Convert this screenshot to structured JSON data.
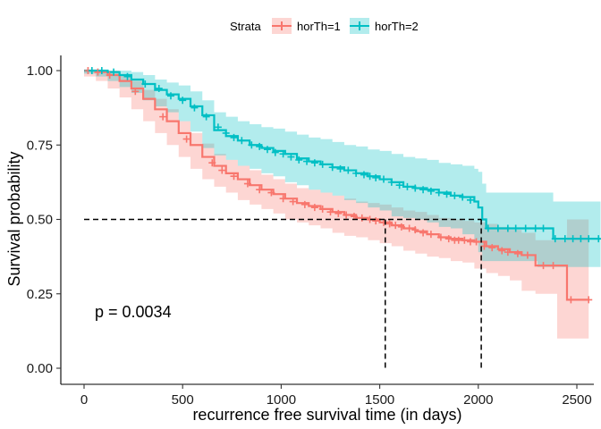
{
  "chart_data": {
    "type": "line",
    "xlabel": "recurrence free survival time (in days)",
    "ylabel": "Survival probability",
    "xlim": [
      -120,
      2620
    ],
    "ylim": [
      -0.05,
      1.05
    ],
    "x_ticks": [
      0,
      500,
      1000,
      1500,
      2000,
      2500
    ],
    "x_tick_labels": [
      "0",
      "500",
      "1000",
      "1500",
      "2000",
      "2500"
    ],
    "y_ticks": [
      0,
      0.25,
      0.5,
      0.75,
      1.0
    ],
    "y_tick_labels": [
      "0.00",
      "0.25",
      "0.50",
      "0.75",
      "1.00"
    ],
    "legend": {
      "title": "Strata",
      "position": "top"
    },
    "pvalue_label": "p = 0.0034",
    "median_line_y": 0.5,
    "series": [
      {
        "name": "horTh=1",
        "color": "#F8766D",
        "median": 1528,
        "x": [
          0,
          60,
          120,
          180,
          240,
          300,
          360,
          420,
          480,
          540,
          600,
          660,
          720,
          780,
          840,
          900,
          960,
          1020,
          1080,
          1140,
          1200,
          1260,
          1320,
          1380,
          1440,
          1500,
          1560,
          1620,
          1680,
          1740,
          1800,
          1860,
          1920,
          1980,
          2040,
          2100,
          2160,
          2220,
          2290,
          2400,
          2450,
          2560
        ],
        "y": [
          1.0,
          0.995,
          0.985,
          0.965,
          0.94,
          0.905,
          0.87,
          0.83,
          0.79,
          0.75,
          0.71,
          0.68,
          0.655,
          0.635,
          0.615,
          0.6,
          0.585,
          0.57,
          0.555,
          0.545,
          0.535,
          0.525,
          0.515,
          0.505,
          0.5,
          0.49,
          0.48,
          0.47,
          0.46,
          0.45,
          0.44,
          0.435,
          0.43,
          0.425,
          0.41,
          0.4,
          0.39,
          0.38,
          0.345,
          0.345,
          0.23,
          0.23
        ],
        "lower": [
          1.0,
          0.98,
          0.965,
          0.94,
          0.91,
          0.87,
          0.83,
          0.79,
          0.75,
          0.71,
          0.67,
          0.635,
          0.61,
          0.59,
          0.565,
          0.55,
          0.535,
          0.52,
          0.5,
          0.49,
          0.48,
          0.47,
          0.455,
          0.445,
          0.44,
          0.43,
          0.42,
          0.41,
          0.395,
          0.385,
          0.375,
          0.37,
          0.36,
          0.355,
          0.335,
          0.32,
          0.31,
          0.295,
          0.26,
          0.25,
          0.1,
          0.1
        ],
        "upper": [
          1.0,
          1.0,
          1.0,
          0.985,
          0.965,
          0.935,
          0.905,
          0.87,
          0.83,
          0.79,
          0.755,
          0.72,
          0.7,
          0.68,
          0.665,
          0.65,
          0.635,
          0.62,
          0.605,
          0.6,
          0.59,
          0.58,
          0.57,
          0.56,
          0.555,
          0.55,
          0.54,
          0.53,
          0.525,
          0.515,
          0.505,
          0.5,
          0.495,
          0.49,
          0.485,
          0.475,
          0.465,
          0.455,
          0.43,
          0.43,
          0.5,
          0.5
        ],
        "censor_x": [
          20,
          70,
          130,
          260,
          400,
          520,
          650,
          700,
          760,
          830,
          890,
          950,
          1010,
          1060,
          1120,
          1170,
          1210,
          1250,
          1290,
          1330,
          1370,
          1410,
          1450,
          1480,
          1520,
          1550,
          1580,
          1610,
          1650,
          1680,
          1720,
          1760,
          1810,
          1850,
          1880,
          1900,
          1930,
          1960,
          1990,
          2030,
          2070,
          2120,
          2150,
          2200,
          2250,
          2330,
          2380,
          2470,
          2560
        ],
        "censor_y": [
          1.0,
          0.995,
          0.985,
          0.93,
          0.845,
          0.77,
          0.69,
          0.665,
          0.645,
          0.62,
          0.6,
          0.59,
          0.57,
          0.56,
          0.55,
          0.54,
          0.535,
          0.525,
          0.52,
          0.515,
          0.51,
          0.505,
          0.5,
          0.495,
          0.49,
          0.485,
          0.48,
          0.475,
          0.47,
          0.465,
          0.455,
          0.45,
          0.44,
          0.435,
          0.43,
          0.43,
          0.43,
          0.425,
          0.425,
          0.41,
          0.405,
          0.395,
          0.39,
          0.385,
          0.38,
          0.345,
          0.345,
          0.23,
          0.23
        ]
      },
      {
        "name": "horTh=2",
        "color": "#00BFC4",
        "median": 2015,
        "x": [
          0,
          60,
          120,
          180,
          240,
          300,
          360,
          420,
          480,
          540,
          600,
          660,
          720,
          780,
          840,
          900,
          960,
          1020,
          1080,
          1140,
          1200,
          1260,
          1320,
          1380,
          1440,
          1500,
          1560,
          1620,
          1680,
          1740,
          1800,
          1860,
          1920,
          1980,
          2000,
          2020,
          2040,
          2100,
          2200,
          2300,
          2380,
          2450,
          2620
        ],
        "y": [
          1.0,
          1.0,
          0.995,
          0.985,
          0.97,
          0.955,
          0.935,
          0.92,
          0.905,
          0.88,
          0.85,
          0.8,
          0.78,
          0.765,
          0.75,
          0.74,
          0.73,
          0.72,
          0.705,
          0.695,
          0.685,
          0.675,
          0.665,
          0.655,
          0.645,
          0.635,
          0.625,
          0.61,
          0.605,
          0.6,
          0.59,
          0.58,
          0.575,
          0.56,
          0.54,
          0.5,
          0.47,
          0.47,
          0.47,
          0.47,
          0.435,
          0.435,
          0.435
        ],
        "lower": [
          1.0,
          0.99,
          0.98,
          0.965,
          0.945,
          0.925,
          0.9,
          0.88,
          0.86,
          0.83,
          0.795,
          0.74,
          0.715,
          0.7,
          0.68,
          0.67,
          0.655,
          0.645,
          0.625,
          0.615,
          0.6,
          0.59,
          0.58,
          0.565,
          0.555,
          0.54,
          0.53,
          0.51,
          0.505,
          0.5,
          0.49,
          0.475,
          0.47,
          0.45,
          0.43,
          0.39,
          0.36,
          0.36,
          0.36,
          0.36,
          0.34,
          0.34,
          0.34
        ],
        "upper": [
          1.0,
          1.0,
          1.0,
          1.0,
          0.995,
          0.985,
          0.97,
          0.96,
          0.95,
          0.93,
          0.9,
          0.86,
          0.845,
          0.83,
          0.82,
          0.81,
          0.805,
          0.795,
          0.785,
          0.775,
          0.77,
          0.76,
          0.75,
          0.745,
          0.735,
          0.73,
          0.72,
          0.71,
          0.705,
          0.7,
          0.69,
          0.685,
          0.68,
          0.67,
          0.66,
          0.62,
          0.59,
          0.59,
          0.59,
          0.59,
          0.56,
          0.56,
          0.56
        ],
        "censor_x": [
          40,
          90,
          150,
          220,
          310,
          380,
          440,
          500,
          560,
          620,
          680,
          720,
          760,
          800,
          850,
          890,
          930,
          970,
          1010,
          1050,
          1090,
          1130,
          1170,
          1210,
          1260,
          1300,
          1340,
          1380,
          1420,
          1450,
          1480,
          1520,
          1560,
          1600,
          1640,
          1680,
          1720,
          1760,
          1800,
          1840,
          1880,
          1920,
          1960,
          2050,
          2100,
          2150,
          2190,
          2240,
          2290,
          2330,
          2390,
          2440,
          2480,
          2520,
          2560,
          2610
        ],
        "censor_y": [
          1.0,
          1.0,
          0.995,
          0.98,
          0.955,
          0.94,
          0.915,
          0.9,
          0.875,
          0.845,
          0.81,
          0.79,
          0.775,
          0.765,
          0.75,
          0.745,
          0.735,
          0.725,
          0.72,
          0.71,
          0.7,
          0.695,
          0.69,
          0.685,
          0.675,
          0.67,
          0.665,
          0.655,
          0.65,
          0.645,
          0.64,
          0.635,
          0.625,
          0.615,
          0.61,
          0.605,
          0.6,
          0.595,
          0.59,
          0.585,
          0.58,
          0.575,
          0.565,
          0.47,
          0.47,
          0.47,
          0.47,
          0.47,
          0.47,
          0.47,
          0.435,
          0.435,
          0.435,
          0.435,
          0.435,
          0.435
        ]
      }
    ]
  }
}
